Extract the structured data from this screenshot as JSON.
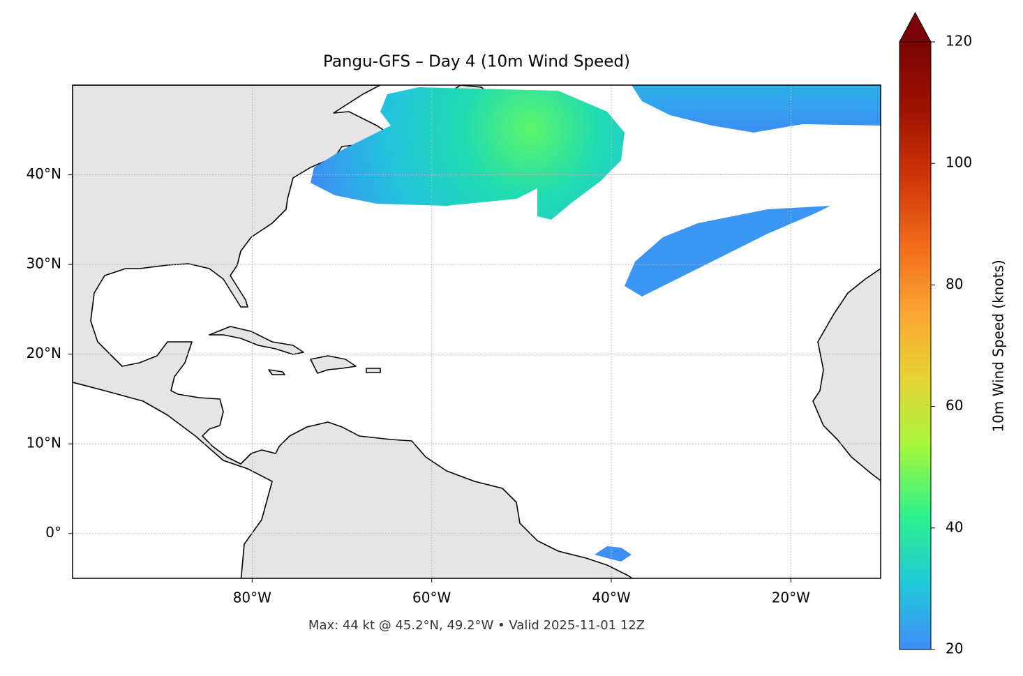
{
  "chart_data": {
    "type": "map",
    "title": "Pangu-GFS – Day 4 (10m Wind Speed)",
    "annotation": "Max: 44 kt @ 45.2°N, 49.2°W • Valid 2025-11-01 12Z",
    "xlim": [
      -100,
      -10
    ],
    "ylim": [
      -5,
      50
    ],
    "xticks": [
      {
        "value": -80,
        "label": "80°W"
      },
      {
        "value": -60,
        "label": "60°W"
      },
      {
        "value": -40,
        "label": "40°W"
      },
      {
        "value": -20,
        "label": "20°W"
      }
    ],
    "yticks": [
      {
        "value": 0,
        "label": "0°"
      },
      {
        "value": 10,
        "label": "10°N"
      },
      {
        "value": 20,
        "label": "20°N"
      },
      {
        "value": 30,
        "label": "30°N"
      },
      {
        "value": 40,
        "label": "40°N"
      }
    ],
    "grid": true,
    "colorbar": {
      "label": "10m Wind Speed (knots)",
      "lim": [
        20,
        120
      ],
      "ticks": [
        20,
        40,
        60,
        80,
        100,
        120
      ],
      "colors": [
        "#3e8ef7",
        "#1fcbd8",
        "#2ef28a",
        "#a4f73c",
        "#e6d433",
        "#fba532",
        "#f26a1a",
        "#cf3508",
        "#9e1202",
        "#7a0403"
      ]
    }
  }
}
